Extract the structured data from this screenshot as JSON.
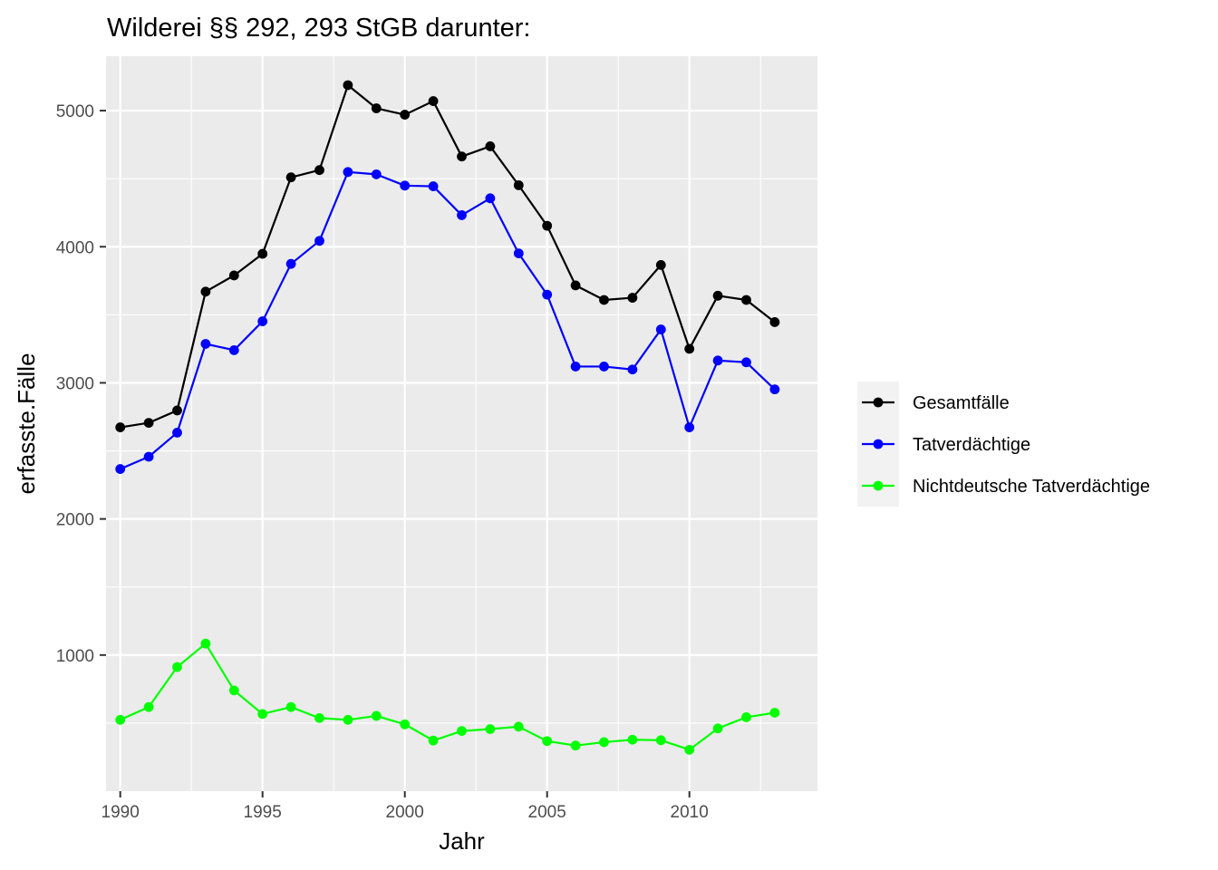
{
  "chart_data": {
    "type": "line",
    "title": "Wilderei §§ 292, 293 StGB darunter:",
    "xlabel": "Jahr",
    "ylabel": "erfasste.Fälle",
    "x": [
      1990,
      1991,
      1992,
      1993,
      1994,
      1995,
      1996,
      1997,
      1998,
      1999,
      2000,
      2001,
      2002,
      2003,
      2004,
      2005,
      2006,
      2007,
      2008,
      2009,
      2010,
      2011,
      2012,
      2013
    ],
    "xlim": [
      1989.5,
      2014.5
    ],
    "ylim": [
      0,
      5400
    ],
    "x_ticks": [
      "1990",
      "1995",
      "2000",
      "2005",
      "2010"
    ],
    "y_ticks": [
      "1000",
      "2000",
      "3000",
      "4000",
      "5000"
    ],
    "grid": true,
    "legend_position": "right",
    "series": [
      {
        "name": "Gesamtfälle",
        "color": "#000000",
        "values": [
          2673,
          2706,
          2797,
          3670,
          3789,
          3948,
          4510,
          4563,
          5187,
          5017,
          4970,
          5070,
          4663,
          4738,
          4452,
          4154,
          3716,
          3609,
          3625,
          3866,
          3250,
          3640,
          3609,
          3446
        ]
      },
      {
        "name": "Tatverdächtige",
        "color": "#0000ff",
        "values": [
          2367,
          2457,
          2634,
          3286,
          3240,
          3452,
          3874,
          4043,
          4549,
          4532,
          4449,
          4444,
          4232,
          4356,
          3951,
          3648,
          3120,
          3120,
          3098,
          3392,
          2673,
          3164,
          3151,
          2952
        ]
      },
      {
        "name": "Nichtdeutsche Tatverdächtige",
        "color": "#00ff00",
        "values": [
          524,
          618,
          912,
          1084,
          740,
          567,
          618,
          537,
          524,
          553,
          491,
          372,
          442,
          456,
          474,
          368,
          335,
          360,
          378,
          374,
          304,
          461,
          543,
          576
        ]
      }
    ]
  }
}
